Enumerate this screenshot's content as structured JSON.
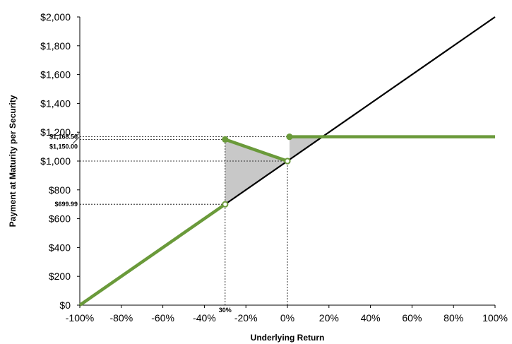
{
  "chart_data": {
    "type": "line",
    "xlabel": "Underlying Return",
    "ylabel": "Payment at Maturity per Security",
    "xlim": [
      -100,
      100
    ],
    "ylim": [
      0,
      2000
    ],
    "x_ticks": [
      -100,
      -80,
      -60,
      -40,
      -20,
      0,
      20,
      40,
      60,
      80,
      100
    ],
    "x_tick_labels": [
      "-100%",
      "-80%",
      "-60%",
      "-40%",
      "-20%",
      "0%",
      "20%",
      "40%",
      "60%",
      "80%",
      "100%"
    ],
    "y_ticks": [
      0,
      200,
      400,
      600,
      800,
      1000,
      1200,
      1400,
      1600,
      1800,
      2000
    ],
    "y_tick_labels": [
      "$0",
      "$200",
      "$400",
      "$600",
      "$800",
      "$1,000",
      "$1,200",
      "$1,400",
      "$1,600",
      "$1,800",
      "$2,000"
    ],
    "grid": false,
    "series": [
      {
        "color": "#000000",
        "points": [
          [
            -100,
            0
          ],
          [
            100,
            2000
          ]
        ]
      },
      {
        "color": "#6a9a3a",
        "points": [
          [
            -100,
            0
          ],
          [
            -30,
            699.99
          ]
        ]
      },
      {
        "color": "#6a9a3a",
        "points": [
          [
            -30,
            1150
          ],
          [
            0,
            1000
          ]
        ]
      },
      {
        "color": "#6a9a3a",
        "points": [
          [
            1,
            1168.5
          ],
          [
            100,
            1168.5
          ]
        ]
      }
    ],
    "markers": [
      {
        "x": -30,
        "y": 699.99,
        "filled": false
      },
      {
        "x": -30,
        "y": 1150,
        "filled": true
      },
      {
        "x": 0,
        "y": 1000,
        "filled": false
      },
      {
        "x": 1,
        "y": 1168.5,
        "filled": true
      }
    ],
    "shaded_regions": [
      {
        "color": "#c8c8c8",
        "points": [
          [
            -30,
            699.99
          ],
          [
            -30,
            1150
          ],
          [
            0,
            1000
          ]
        ]
      },
      {
        "color": "#c8c8c8",
        "points": [
          [
            1,
            1168.5
          ],
          [
            16.85,
            1168.5
          ],
          [
            1,
            1010
          ]
        ]
      }
    ],
    "reference_lines": {
      "horizontal": [
        {
          "y": 1168.5,
          "x_to": 1,
          "label": "$1,168.50"
        },
        {
          "y": 1150,
          "x_to": -30,
          "label": "$1,150.00"
        },
        {
          "y": 1000,
          "x_to": 0,
          "label": ""
        },
        {
          "y": 699.99,
          "x_to": -30,
          "label": "$699.99"
        }
      ],
      "vertical": [
        {
          "x": -30,
          "label": "30%"
        },
        {
          "x": 0,
          "label": ""
        }
      ]
    },
    "colors": {
      "underlying": "#000000",
      "payoff": "#6a9a3a",
      "shade": "#c8c8c8",
      "guide": "#000000"
    }
  }
}
